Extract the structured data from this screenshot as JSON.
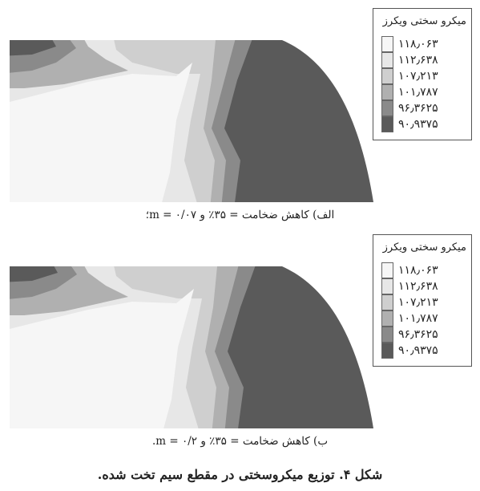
{
  "legend": {
    "title": "میکرو سختی ویکرز",
    "levels": [
      {
        "value": "۱۱۸٫۰۶۳",
        "color": "#f6f6f6"
      },
      {
        "value": "۱۱۲٫۶۳۸",
        "color": "#e7e7e7"
      },
      {
        "value": "۱۰۷٫۲۱۳",
        "color": "#cfcfcf"
      },
      {
        "value": "۱۰۱٫۷۸۷",
        "color": "#b0b0b0"
      },
      {
        "value": "۹۶٫۳۶۲۵",
        "color": "#8a8a8a"
      },
      {
        "value": "۹۰٫۹۳۷۵",
        "color": "#5a5a5a"
      }
    ]
  },
  "panels": [
    {
      "caption": "الف) کاهش ضخامت = ۳۵٪ و ۰/۰۷ = m؛",
      "legend_title": "میکرو سختی ویکرز"
    },
    {
      "caption": "ب) کاهش ضخامت = ۳۵٪ و ۰/۲ = m.",
      "legend_title": "میکرو سختی ویکرز"
    }
  ],
  "figure_caption": "شکل ۴. توزیع میکروسختی در مقطع سیم تخت شده."
}
